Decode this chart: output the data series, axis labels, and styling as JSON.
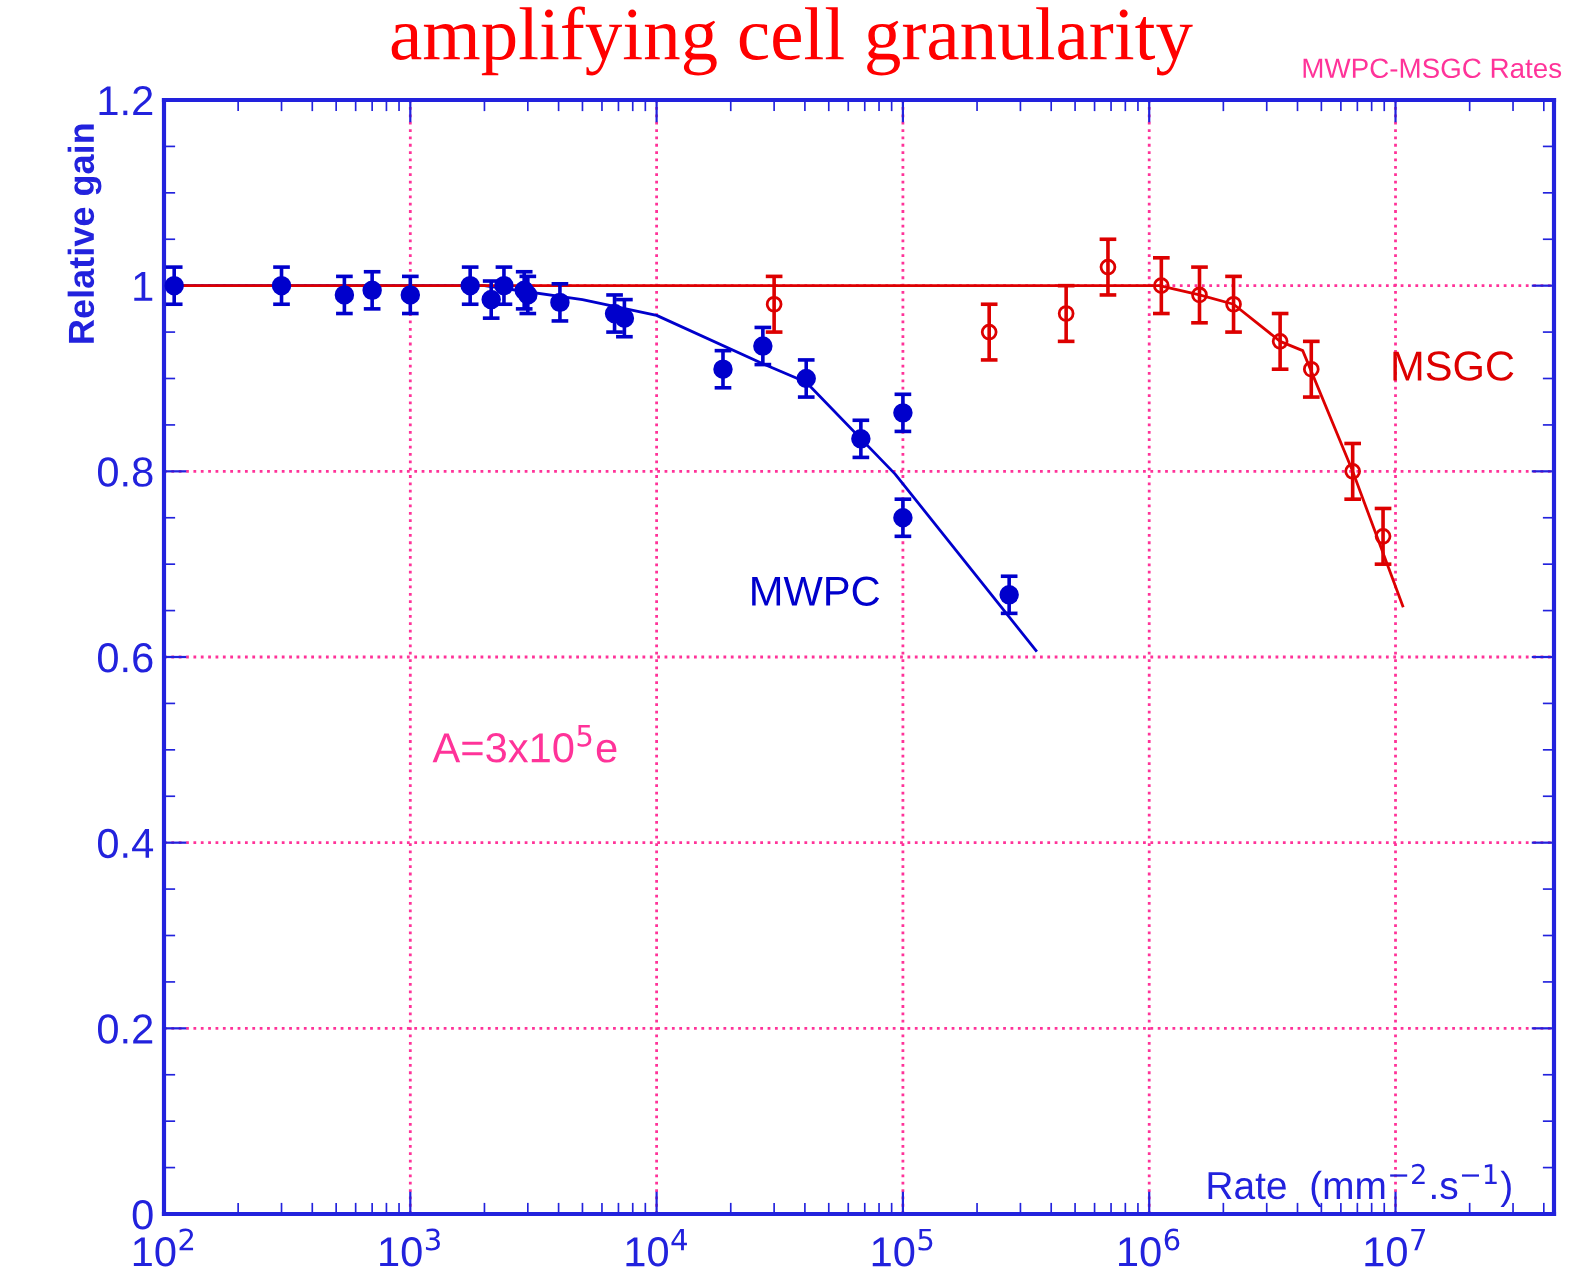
{
  "chart_data": {
    "type": "scatter",
    "title": "amplifying cell granularity",
    "subtitle": "MWPC-MSGC Rates",
    "xlabel": "Rate  (mm$^{−2}$.s$^{−1}$)",
    "ylabel": "Relative gain",
    "annotations": [
      "A=3x10$^{5}$e"
    ],
    "log": "x",
    "grid": true,
    "legend": false,
    "xlim": [
      100,
      44000000
    ],
    "xticks": [
      {
        "value": 100,
        "label": "10$^{2}$"
      },
      {
        "value": 1000,
        "label": "10$^{3}$"
      },
      {
        "value": 10000,
        "label": "10$^{4}$"
      },
      {
        "value": 100000,
        "label": "10$^{5}$"
      },
      {
        "value": 1000000,
        "label": "10$^{6}$"
      },
      {
        "value": 10000000,
        "label": "10$^{7}$"
      }
    ],
    "ylim": [
      0,
      1.2
    ],
    "yticks": [
      0,
      0.2,
      0.4,
      0.6,
      0.8,
      1,
      1.2
    ],
    "series": [
      {
        "name": "MWPC",
        "marker": "circle",
        "color": "#0000cc",
        "x": [
          110,
          300,
          540,
          700,
          1000,
          1750,
          2130,
          2400,
          2900,
          3000,
          4050,
          6750,
          7400,
          18600,
          27000,
          40500,
          67500,
          100000,
          100000,
          270000
        ],
        "values": [
          1.0,
          1.0,
          0.99,
          0.995,
          0.99,
          1.0,
          0.985,
          1.0,
          0.995,
          0.99,
          0.982,
          0.97,
          0.965,
          0.91,
          0.935,
          0.9,
          0.835,
          0.863,
          0.75,
          0.667
        ],
        "errors": [
          0.02,
          0.02,
          0.02,
          0.02,
          0.02,
          0.02,
          0.02,
          0.02,
          0.02,
          0.02,
          0.02,
          0.02,
          0.02,
          0.02,
          0.02,
          0.02,
          0.02,
          0.02,
          0.02,
          0.02
        ]
      },
      {
        "type": "line",
        "marker": "none",
        "color": "#0000cc",
        "x": [
          100,
          2000,
          5000,
          10000,
          27000,
          40500,
          93000,
          347000
        ],
        "values": [
          1.0,
          1.0,
          0.985,
          0.968,
          0.916,
          0.896,
          0.797,
          0.607
        ]
      },
      {
        "name": "MSGC",
        "marker": "circle",
        "color": "#dd0000",
        "x": [
          30000,
          224000,
          460000,
          680000,
          1120000,
          1600000,
          2200000,
          3400000,
          4550000,
          6700000,
          8900000
        ],
        "values": [
          0.98,
          0.95,
          0.97,
          1.02,
          1.0,
          0.99,
          0.98,
          0.94,
          0.91,
          0.8,
          0.73
        ],
        "errors": [
          0.03,
          0.03,
          0.03,
          0.03,
          0.03,
          0.03,
          0.03,
          0.03,
          0.03,
          0.03,
          0.03
        ]
      },
      {
        "type": "line",
        "marker": "none",
        "color": "#dd0000",
        "x": [
          100,
          1100000,
          1600000,
          2200000,
          3400000,
          4200000,
          6700000,
          10700000
        ],
        "values": [
          1.0,
          1.0,
          0.99,
          0.98,
          0.94,
          0.93,
          0.8,
          0.655
        ]
      }
    ]
  }
}
